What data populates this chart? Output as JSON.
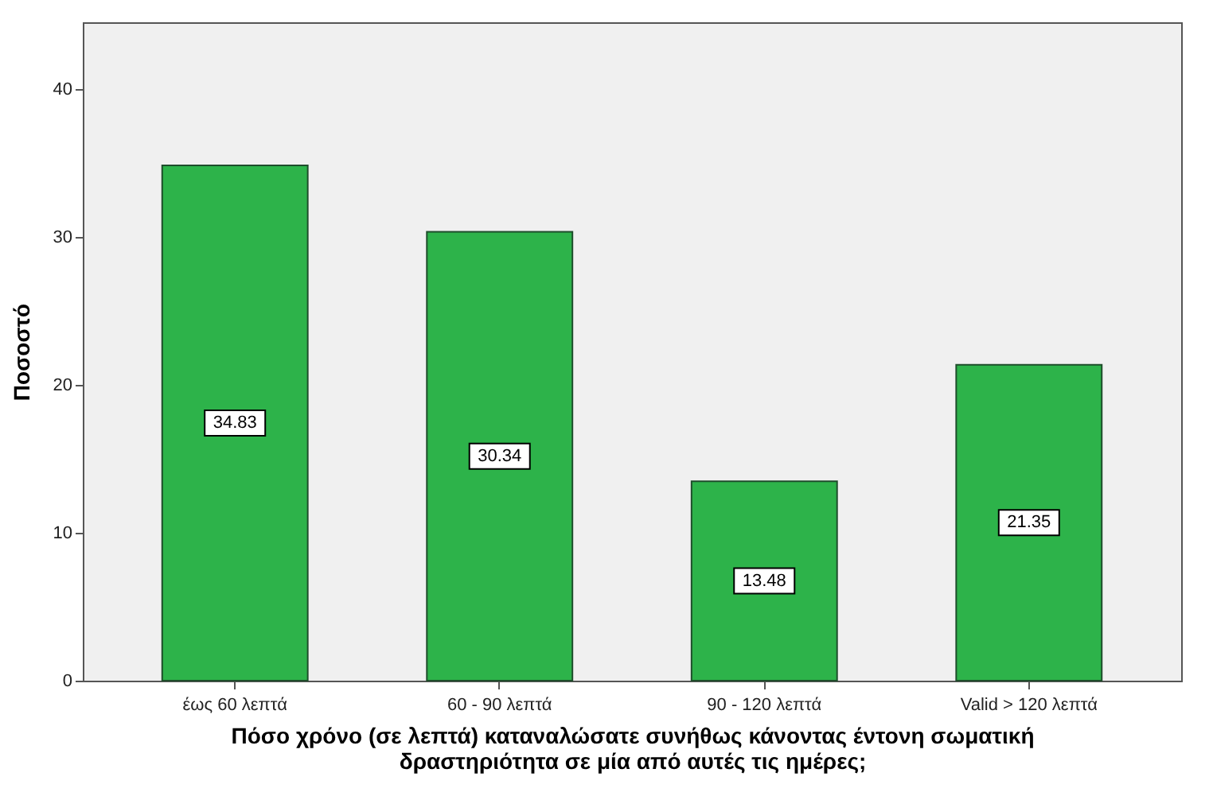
{
  "chart_data": {
    "type": "bar",
    "xlabel": "Πόσο χρόνο (σε λεπτά) καταναλώσατε συνήθως κάνοντας έντονη σωματική δραστηριότητα σε μία από αυτές τις ημέρες;",
    "ylabel": "Ποσοστό",
    "categories": [
      "έως 60 λεπτά",
      "60 - 90 λεπτά",
      "90 - 120 λεπτά",
      "Valid > 120 λεπτά"
    ],
    "values": [
      34.83,
      30.34,
      13.48,
      21.35
    ],
    "color": "#2db34a",
    "ylim": [
      0,
      44.5
    ],
    "yticks": [
      0,
      10,
      20,
      30,
      40
    ],
    "data_labels": true
  }
}
